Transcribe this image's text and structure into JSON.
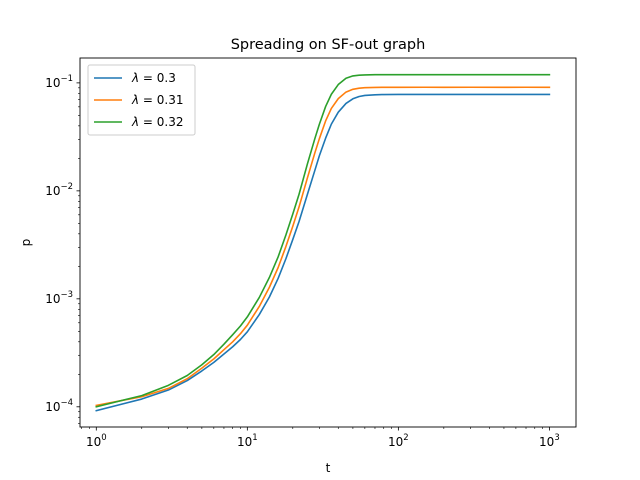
{
  "chart_data": {
    "type": "line",
    "title": "Spreading on SF-out graph",
    "xlabel": "t",
    "ylabel": "p",
    "xscale": "log",
    "yscale": "log",
    "xlim": [
      0.78,
      1500
    ],
    "ylim": [
      6.5e-05,
      0.17
    ],
    "grid": false,
    "legend_position": "top-left",
    "x_ticks": [
      {
        "value": 1,
        "base": "10",
        "exp": "0"
      },
      {
        "value": 10,
        "base": "10",
        "exp": "1"
      },
      {
        "value": 100,
        "base": "10",
        "exp": "2"
      },
      {
        "value": 1000,
        "base": "10",
        "exp": "3"
      }
    ],
    "y_ticks": [
      {
        "value": 0.0001,
        "base": "10",
        "exp": "−4"
      },
      {
        "value": 0.001,
        "base": "10",
        "exp": "−3"
      },
      {
        "value": 0.01,
        "base": "10",
        "exp": "−2"
      },
      {
        "value": 0.1,
        "base": "10",
        "exp": "−1"
      }
    ],
    "series": [
      {
        "name": "λ = 0.3",
        "legend_lambda": "λ",
        "legend_rest": " = 0.3",
        "color": "#1f77b4",
        "x": [
          1,
          2,
          3,
          4,
          5,
          6,
          7,
          8,
          9,
          10,
          12,
          14,
          16,
          18,
          20,
          22,
          25,
          28,
          30,
          33,
          36,
          40,
          45,
          50,
          55,
          60,
          70,
          80,
          100,
          150,
          200,
          300,
          500,
          700,
          1000
        ],
        "y": [
          9.2e-05,
          0.000118,
          0.000143,
          0.000175,
          0.000215,
          0.000258,
          0.000308,
          0.00036,
          0.00042,
          0.000495,
          0.000715,
          0.00104,
          0.00155,
          0.00235,
          0.00355,
          0.0052,
          0.0093,
          0.0155,
          0.0212,
          0.0308,
          0.0415,
          0.0535,
          0.0645,
          0.0712,
          0.0748,
          0.0765,
          0.0776,
          0.078,
          0.0782,
          0.0782,
          0.0781,
          0.0782,
          0.0781,
          0.0782,
          0.0781
        ]
      },
      {
        "name": "λ = 0.31",
        "legend_lambda": "λ",
        "legend_rest": " = 0.31",
        "color": "#ff7f0e",
        "x": [
          1,
          2,
          3,
          4,
          5,
          6,
          7,
          8,
          9,
          10,
          12,
          14,
          16,
          18,
          20,
          22,
          25,
          28,
          30,
          33,
          36,
          40,
          45,
          50,
          55,
          60,
          70,
          80,
          100,
          150,
          200,
          300,
          500,
          700,
          1000
        ],
        "y": [
          0.000103,
          0.000124,
          0.000148,
          0.000182,
          0.000228,
          0.000278,
          0.000338,
          0.0004,
          0.000475,
          0.00057,
          0.00085,
          0.00128,
          0.00195,
          0.00305,
          0.0047,
          0.0071,
          0.0132,
          0.0225,
          0.0305,
          0.0445,
          0.058,
          0.0715,
          0.0822,
          0.0872,
          0.0893,
          0.0902,
          0.0908,
          0.091,
          0.091,
          0.0911,
          0.091,
          0.0911,
          0.091,
          0.0911,
          0.091
        ]
      },
      {
        "name": "λ = 0.32",
        "legend_lambda": "λ",
        "legend_rest": " = 0.32",
        "color": "#2ca02c",
        "x": [
          1,
          2,
          3,
          4,
          5,
          6,
          7,
          8,
          9,
          10,
          12,
          14,
          16,
          18,
          20,
          22,
          25,
          28,
          30,
          33,
          36,
          40,
          45,
          50,
          55,
          60,
          70,
          80,
          100,
          150,
          200,
          300,
          500,
          700,
          1000
        ],
        "y": [
          0.0001,
          0.000127,
          0.000158,
          0.000195,
          0.000245,
          0.000305,
          0.00038,
          0.000465,
          0.00056,
          0.00068,
          0.00103,
          0.00158,
          0.00245,
          0.0039,
          0.0061,
          0.0093,
          0.0178,
          0.0305,
          0.0415,
          0.0605,
          0.0785,
          0.0965,
          0.1105,
          0.116,
          0.1178,
          0.1185,
          0.119,
          0.1191,
          0.1192,
          0.1191,
          0.1192,
          0.1191,
          0.1192,
          0.1191,
          0.1192
        ]
      }
    ]
  }
}
